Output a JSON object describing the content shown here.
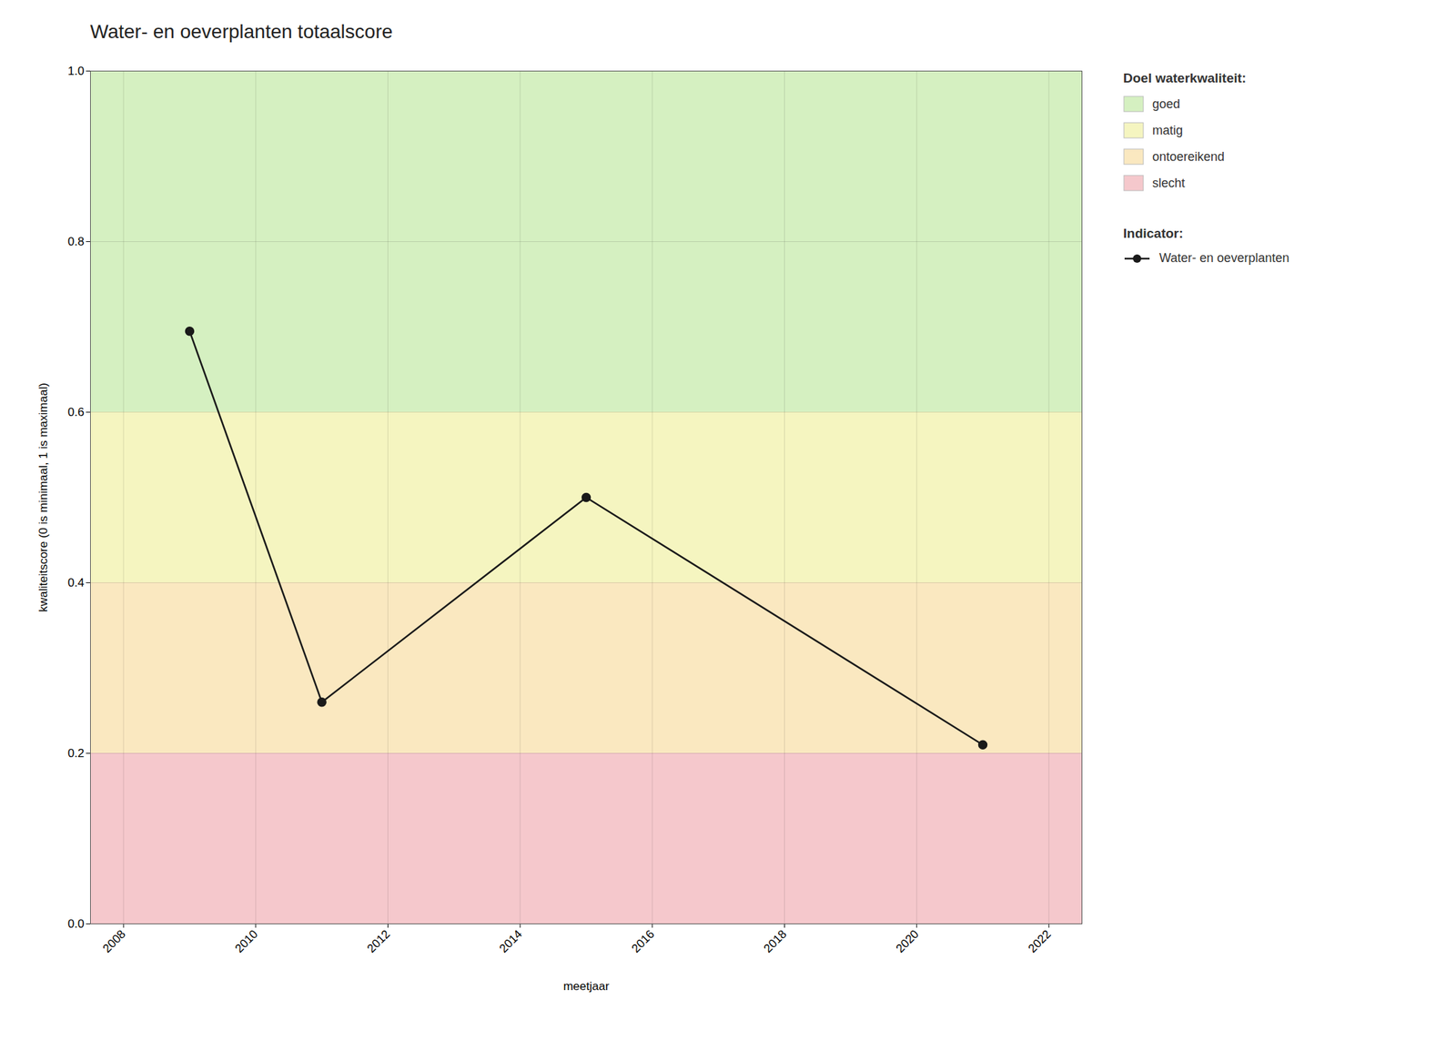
{
  "chart_data": {
    "type": "line",
    "title": "Water- en oeverplanten totaalscore",
    "xlabel": "meetjaar",
    "ylabel": "kwaliteitscore (0 is minimaal, 1 is maximaal)",
    "xlim": [
      2007.5,
      2022.5
    ],
    "ylim": [
      0.0,
      1.0
    ],
    "xticks": [
      2008,
      2010,
      2012,
      2014,
      2016,
      2018,
      2020,
      2022
    ],
    "yticks": [
      {
        "value": 0.0,
        "label": "0.0"
      },
      0.2,
      0.4,
      0.6,
      0.8,
      {
        "value": 1.0,
        "label": "1.0"
      }
    ],
    "grid": true,
    "legend": "right",
    "x": [
      2009,
      2011,
      2015,
      2021
    ],
    "series": [
      {
        "name": "Water- en oeverplanten",
        "color": "#1a1a1a",
        "marker": "o",
        "line_style": "solid",
        "values": [
          0.695,
          0.26,
          0.5,
          0.21
        ]
      }
    ],
    "series_legend_title": "Indicator:",
    "bands_legend_title": "Doel waterkwaliteit:",
    "bands": [
      {
        "name": "goed",
        "color": "#d5f0c1",
        "ymin": 0.6,
        "ymax": 1.0
      },
      {
        "name": "matig",
        "color": "#f5f5c0",
        "ymin": 0.4,
        "ymax": 0.6
      },
      {
        "name": "ontoereikend",
        "color": "#fae8c0",
        "ymin": 0.2,
        "ymax": 0.4
      },
      {
        "name": "slecht",
        "color": "#f5c8cc",
        "ymin": 0.0,
        "ymax": 0.2
      }
    ]
  }
}
